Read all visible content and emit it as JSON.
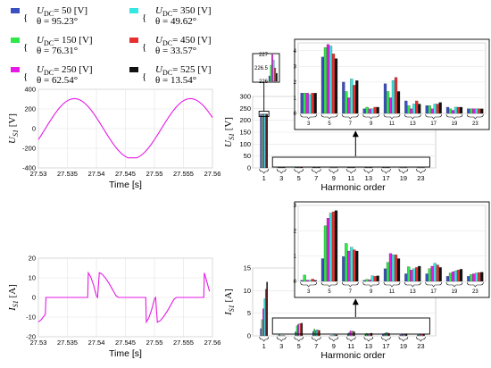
{
  "legend": {
    "items": [
      {
        "color": "#3a4fc0",
        "line1": "U_DC= 50   [V]",
        "line2": "θ   = 95.23°"
      },
      {
        "color": "#2ee84a",
        "line1": "U_DC= 150 [V]",
        "line2": "θ   = 76.31°"
      },
      {
        "color": "#e619e6",
        "line1": "U_DC= 250 [V]",
        "line2": "θ   = 62.54°"
      },
      {
        "color": "#36e6e0",
        "line1": "U_DC= 350 [V]",
        "line2": "θ   = 49.62°"
      },
      {
        "color": "#e63030",
        "line1": "U_DC= 450 [V]",
        "line2": "θ   = 33.57°"
      },
      {
        "color": "#111111",
        "line1": "U_DC= 525 [V]",
        "line2": "θ   = 13.54°"
      }
    ]
  },
  "arrow_color": "#000000",
  "chart_data": [
    {
      "type": "line",
      "panel": "voltage-time",
      "xlabel": "Time [s]",
      "ylabel": "U_S1 [V]",
      "xlim": [
        27.53,
        27.56
      ],
      "ylim": [
        -400,
        400
      ],
      "xticks": [
        "27.53",
        "27.535",
        "27.54",
        "27.545",
        "27.55",
        "27.555",
        "27.56"
      ],
      "yticks": [
        "400",
        "200",
        "0",
        "-200",
        "-400"
      ],
      "series": [
        {
          "color": "#e619e6",
          "waveform": "sine",
          "amplitude": 305,
          "period": 0.02,
          "zero_cross_up": 27.5312
        }
      ]
    },
    {
      "type": "bar",
      "panel": "voltage-harmonics",
      "xlabel": "Harmonic order",
      "ylabel": "U_S1 [V]",
      "categories": [
        "1",
        "3",
        "5",
        "7",
        "9",
        "11",
        "13",
        "17",
        "19",
        "23"
      ],
      "ylim": [
        0,
        300
      ],
      "yticks": [
        "300",
        "250",
        "200",
        "150",
        "100",
        "50",
        "0"
      ],
      "series": [
        {
          "values": [
            226.2,
            1.3,
            3.6,
            2.0,
            0.3,
            1.9,
            0.8,
            0.5,
            0.4,
            0.3
          ]
        },
        {
          "values": [
            226.6,
            1.3,
            4.2,
            1.4,
            0.4,
            1.4,
            0.5,
            0.5,
            0.3,
            0.3
          ]
        },
        {
          "values": [
            227.0,
            1.3,
            4.4,
            1.0,
            0.3,
            1.0,
            0.3,
            0.3,
            0.2,
            0.3
          ]
        },
        {
          "values": [
            226.8,
            1.2,
            4.3,
            2.2,
            0.3,
            2.1,
            0.6,
            0.6,
            0.4,
            0.3
          ]
        },
        {
          "values": [
            226.5,
            1.3,
            3.8,
            1.8,
            0.4,
            2.3,
            0.8,
            0.6,
            0.4,
            0.3
          ]
        },
        {
          "values": [
            226.3,
            1.3,
            3.5,
            2.1,
            0.4,
            1.4,
            0.6,
            0.7,
            0.4,
            0.3
          ]
        }
      ],
      "zoom_main": {
        "categories": [
          "3",
          "5",
          "7",
          "9",
          "11",
          "13",
          "17",
          "19",
          "23"
        ],
        "ylim": [
          0,
          4.5
        ],
        "yticks": [
          "4",
          "3",
          "2",
          "1",
          "0"
        ]
      },
      "zoom_fund": {
        "ylim": [
          226,
          227
        ],
        "yticks": [
          "227",
          "226.5",
          "226"
        ]
      }
    },
    {
      "type": "line",
      "panel": "current-time",
      "xlabel": "Time [s]",
      "ylabel": "I_S1 [A]",
      "xlim": [
        27.53,
        27.56
      ],
      "ylim": [
        -20,
        20
      ],
      "xticks": [
        "27.53",
        "27.535",
        "27.54",
        "27.545",
        "27.55",
        "27.555",
        "27.56"
      ],
      "yticks": [
        "20",
        "10",
        "0",
        "-10",
        "-20"
      ],
      "series": [
        {
          "color": "#e619e6",
          "x": [
            27.53,
            27.5305,
            27.5312,
            27.5313,
            27.5318,
            27.5339,
            27.534,
            27.5341,
            27.5385,
            27.5386,
            27.539,
            27.5395,
            27.54,
            27.5402,
            27.5405,
            27.541,
            27.5416,
            27.5422,
            27.5428,
            27.5434,
            27.5438,
            27.5459,
            27.546,
            27.5461,
            27.5485,
            27.5486,
            27.549,
            27.5495,
            27.55,
            27.5502,
            27.5505,
            27.551,
            27.5516,
            27.5522,
            27.5528,
            27.5534,
            27.5538,
            27.5559,
            27.556,
            27.5561,
            27.5585,
            27.5586,
            27.5595
          ],
          "y": [
            -12.5,
            -11.3,
            -8.6,
            0,
            0,
            0,
            0,
            0,
            0,
            12.5,
            10.6,
            6.4,
            0.8,
            0,
            12.6,
            11.8,
            9.7,
            7.0,
            3.9,
            0.8,
            0,
            0,
            0,
            0,
            0,
            -12.5,
            -10.6,
            -6.4,
            -0.8,
            0,
            -12.6,
            -11.8,
            -9.7,
            -7.0,
            -3.9,
            -0.8,
            0,
            0,
            0,
            0,
            0,
            12.5,
            3
          ]
        }
      ]
    },
    {
      "type": "bar",
      "panel": "current-harmonics",
      "xlabel": "Harmonic order",
      "ylabel": "I_S1 [A]",
      "categories": [
        "1",
        "3",
        "5",
        "7",
        "9",
        "11",
        "13",
        "17",
        "19",
        "23"
      ],
      "ylim": [
        0,
        15
      ],
      "yticks": [
        "15",
        "10",
        "5",
        "0"
      ],
      "series": [
        {
          "values": [
            1.6,
            0.04,
            0.9,
            0.98,
            0.04,
            0.5,
            0.3,
            0.3,
            0.2,
            0.2
          ]
        },
        {
          "values": [
            3.6,
            0.25,
            2.2,
            1.5,
            0.08,
            0.75,
            0.58,
            0.5,
            0.33,
            0.27
          ]
        },
        {
          "values": [
            6.0,
            0.05,
            2.5,
            1.2,
            0.06,
            1.1,
            0.45,
            0.6,
            0.38,
            0.3
          ]
        },
        {
          "values": [
            8.2,
            0.04,
            2.7,
            1.35,
            0.22,
            1.05,
            0.5,
            0.72,
            0.42,
            0.33
          ]
        },
        {
          "values": [
            10.3,
            0.09,
            2.75,
            1.25,
            0.2,
            1.05,
            0.55,
            0.65,
            0.45,
            0.35
          ]
        },
        {
          "values": [
            11.9,
            0.04,
            2.8,
            1.2,
            0.22,
            0.9,
            0.6,
            0.55,
            0.48,
            0.36
          ]
        }
      ],
      "zoom_main": {
        "categories": [
          "3",
          "5",
          "7",
          "9",
          "11",
          "13",
          "17",
          "19",
          "23"
        ],
        "ylim": [
          0,
          3
        ],
        "yticks": [
          "3",
          "2",
          "1",
          "0"
        ]
      }
    }
  ]
}
